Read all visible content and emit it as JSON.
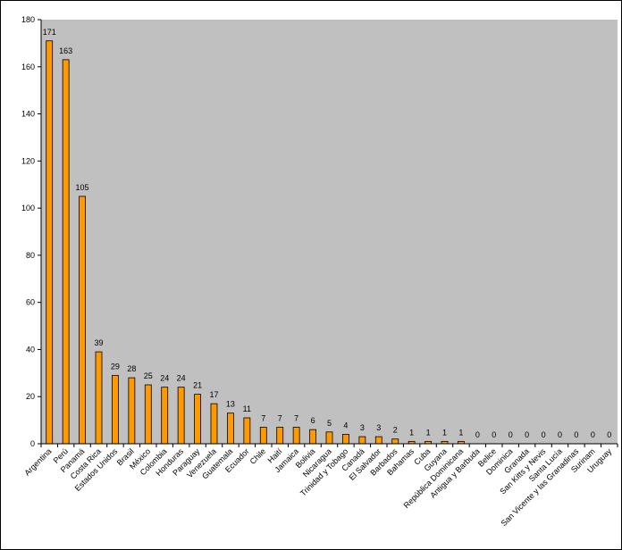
{
  "chart_data": {
    "type": "bar",
    "title": "",
    "xlabel": "",
    "ylabel": "",
    "ylim": [
      0,
      180
    ],
    "yticks": [
      0,
      20,
      40,
      60,
      80,
      100,
      120,
      140,
      160,
      180
    ],
    "grid": false,
    "legend": "none",
    "colors": {
      "plot_bg": "#c0c0c0",
      "bar_fill": "#ff9900",
      "bar_stroke": "#000000"
    },
    "categories": [
      "Argentina",
      "Perú",
      "Panamá",
      "Costa Rica",
      "Estados Unidos",
      "Brasil",
      "México",
      "Colombia",
      "Honduras",
      "Paraguay",
      "Venezuela",
      "Guatemala",
      "Ecuador",
      "Chile",
      "Haití",
      "Jamaica",
      "Bolivia",
      "Nicaragua",
      "Trinidad y Tobago",
      "Canadá",
      "El Salvador",
      "Barbados",
      "Bahamas",
      "Cuba",
      "Guyana",
      "República Dominicana",
      "Antigua y Barbuda",
      "Belice",
      "Dominica",
      "Granada",
      "San Kitts y Nevis",
      "Santa Lucía",
      "San Vicente y las Granadinas",
      "Surinam",
      "Uruguay"
    ],
    "values": [
      171,
      163,
      105,
      39,
      29,
      28,
      25,
      24,
      24,
      21,
      17,
      13,
      11,
      7,
      7,
      7,
      6,
      5,
      4,
      3,
      3,
      2,
      1,
      1,
      1,
      1,
      0,
      0,
      0,
      0,
      0,
      0,
      0,
      0,
      0
    ]
  }
}
